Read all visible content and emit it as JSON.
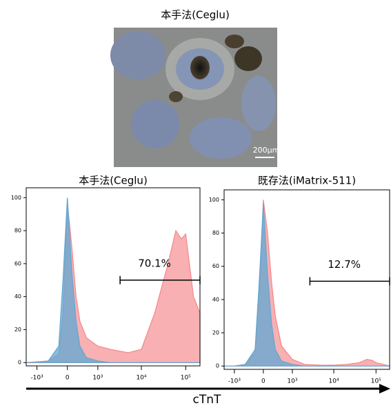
{
  "image": {
    "title": "本手法(Ceglu)",
    "scale_bar": "200μm"
  },
  "axis_label": "cTnT",
  "chart_data": [
    {
      "type": "area",
      "title": "本手法(Ceglu)",
      "xscale": "biexponential",
      "x": [
        -1800,
        -1000,
        -500,
        -200,
        -100,
        0,
        100,
        200,
        300,
        500,
        1000,
        2000,
        5000,
        10000,
        20000,
        40000,
        60000,
        80000,
        100000,
        150000,
        210000
      ],
      "series": [
        {
          "color": "#f4868a",
          "values": [
            0,
            0.5,
            1,
            5,
            30,
            97,
            70,
            40,
            25,
            15,
            10,
            8,
            6,
            8,
            30,
            60,
            80,
            75,
            78,
            40,
            30
          ]
        },
        {
          "color": "#5fa8d3",
          "values": [
            0,
            0,
            1,
            10,
            50,
            100,
            55,
            25,
            10,
            3,
            1,
            0,
            0,
            0,
            0,
            0,
            0,
            0,
            0,
            0,
            0
          ]
        }
      ],
      "gate": {
        "label": "70.1%",
        "x": [
          3300,
          210000
        ],
        "y": 50
      },
      "xlim": [
        -1800,
        210000
      ],
      "ylim": [
        -2,
        106
      ],
      "xticks": [
        {
          "value": -1000,
          "label": "-10³"
        },
        0,
        {
          "value": 1000,
          "label": "10³"
        },
        {
          "value": 10000,
          "label": "10⁴"
        },
        {
          "value": 100000,
          "label": "10⁵"
        }
      ],
      "yticks": [
        0,
        20,
        40,
        60,
        80,
        100
      ]
    },
    {
      "type": "area",
      "title": "既存法(iMatrix-511)",
      "xscale": "biexponential",
      "x": [
        -1800,
        -1000,
        -500,
        -200,
        -100,
        0,
        100,
        200,
        300,
        500,
        1000,
        2000,
        5000,
        10000,
        20000,
        40000,
        60000,
        80000,
        100000,
        150000,
        210000
      ],
      "series": [
        {
          "color": "#f4868a",
          "values": [
            0,
            0,
            1,
            8,
            40,
            100,
            80,
            50,
            30,
            12,
            4,
            1,
            0.5,
            0.5,
            1,
            2,
            4,
            3.5,
            2,
            1,
            0
          ]
        },
        {
          "color": "#5fa8d3",
          "values": [
            0,
            0,
            1,
            10,
            50,
            98,
            55,
            25,
            10,
            3,
            1,
            0,
            0,
            0,
            0,
            0,
            0,
            0,
            0,
            0,
            0
          ]
        }
      ],
      "gate": {
        "label": "12.7%",
        "x": [
          2700,
          210000
        ],
        "y": 51
      },
      "xlim": [
        -1800,
        210000
      ],
      "ylim": [
        -2,
        106
      ],
      "xticks": [
        {
          "value": -1000,
          "label": "-10³"
        },
        0,
        {
          "value": 1000,
          "label": "10³"
        },
        {
          "value": 10000,
          "label": "10⁴"
        },
        {
          "value": 100000,
          "label": "10⁵"
        }
      ],
      "yticks": [
        0,
        20,
        40,
        60,
        80,
        100
      ]
    }
  ]
}
